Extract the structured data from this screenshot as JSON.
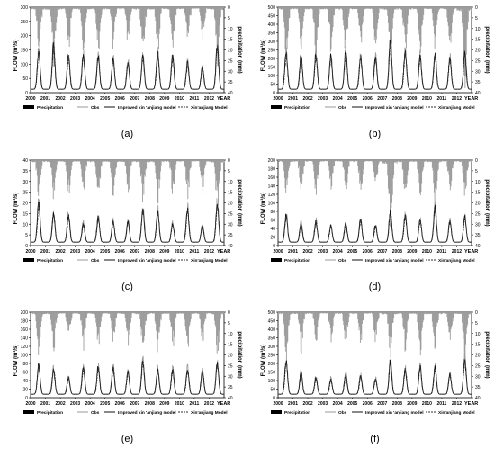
{
  "figure": {
    "legend_labels": {
      "precipitation": "Precipitation",
      "obs": "Obs",
      "improved": "Improved xin 'anjiang model",
      "xaj": "Xin'anjiang Model"
    },
    "colors": {
      "obs": "#9a9a9a",
      "improved": "#111111",
      "xaj": "#333333",
      "precip": "#9c9c9c"
    }
  },
  "chart_data": [
    {
      "type": "line",
      "panel_label": "(a)",
      "ylabel": "FLOW (m³/s)",
      "y2label": "precipitation (mm)",
      "xlabel": "YEAR",
      "ylim": [
        0,
        300
      ],
      "yticks": [
        0,
        50,
        100,
        150,
        200,
        250,
        300
      ],
      "y2lim": [
        0,
        40
      ],
      "y2ticks": [
        0,
        5,
        10,
        15,
        20,
        25,
        30,
        35,
        40
      ],
      "x": [
        "2000",
        "2001",
        "2002",
        "2003",
        "2004",
        "2005",
        "2006",
        "2007",
        "2008",
        "2009",
        "2010",
        "2011",
        "2012"
      ],
      "peak_flow": [
        140,
        160,
        120,
        125,
        120,
        110,
        95,
        120,
        130,
        120,
        95,
        80,
        160
      ],
      "peak_precip": [
        22,
        26,
        20,
        22,
        21,
        20,
        18,
        24,
        22,
        20,
        18,
        17,
        26
      ]
    },
    {
      "type": "line",
      "panel_label": "(b)",
      "ylabel": "FLOW (m³/s)",
      "y2label": "precipitation (mm)",
      "xlabel": "YEAR",
      "ylim": [
        0,
        500
      ],
      "yticks": [
        0,
        50,
        100,
        150,
        200,
        250,
        300,
        350,
        400,
        450,
        500
      ],
      "y2lim": [
        0,
        40
      ],
      "y2ticks": [
        0,
        5,
        10,
        15,
        20,
        25,
        30,
        35,
        40
      ],
      "x": [
        "2000",
        "2001",
        "2002",
        "2003",
        "2004",
        "2005",
        "2006",
        "2007",
        "2008",
        "2009",
        "2010",
        "2011",
        "2012"
      ],
      "peak_flow": [
        220,
        200,
        210,
        200,
        230,
        200,
        190,
        300,
        230,
        200,
        210,
        190,
        220
      ],
      "peak_precip": [
        24,
        20,
        22,
        20,
        23,
        21,
        19,
        25,
        22,
        20,
        21,
        19,
        35
      ]
    },
    {
      "type": "line",
      "panel_label": "(c)",
      "ylabel": "FLOW (m³/s)",
      "y2label": "precipitation (mm)",
      "xlabel": "YEAR",
      "ylim": [
        0,
        40
      ],
      "yticks": [
        0,
        5,
        10,
        15,
        20,
        25,
        30,
        35,
        40
      ],
      "y2lim": [
        0,
        40
      ],
      "y2ticks": [
        0,
        5,
        10,
        15,
        20,
        25,
        30,
        35,
        40
      ],
      "x": [
        "2000",
        "2001",
        "2002",
        "2003",
        "2004",
        "2005",
        "2006",
        "2007",
        "2008",
        "2009",
        "2010",
        "2011",
        "2012"
      ],
      "peak_flow": [
        19,
        14,
        13,
        9,
        12,
        10,
        10,
        16,
        15,
        9,
        16,
        8,
        19
      ],
      "peak_precip": [
        20,
        18,
        17,
        15,
        19,
        17,
        16,
        21,
        20,
        16,
        18,
        15,
        24
      ]
    },
    {
      "type": "line",
      "panel_label": "(d)",
      "ylabel": "FLOW (m³/s)",
      "y2label": "precipitation (mm)",
      "xlabel": "YEAR",
      "ylim": [
        0,
        200
      ],
      "yticks": [
        0,
        20,
        40,
        60,
        80,
        100,
        120,
        140,
        160,
        180,
        200
      ],
      "y2lim": [
        0,
        40
      ],
      "y2ticks": [
        0,
        5,
        10,
        15,
        20,
        25,
        30,
        35,
        40
      ],
      "x": [
        "2000",
        "2001",
        "2002",
        "2003",
        "2004",
        "2005",
        "2006",
        "2007",
        "2008",
        "2009",
        "2010",
        "2011",
        "2012"
      ],
      "peak_flow": [
        65,
        45,
        50,
        40,
        45,
        55,
        40,
        75,
        65,
        55,
        85,
        50,
        60
      ],
      "peak_precip": [
        18,
        15,
        16,
        14,
        15,
        16,
        13,
        35,
        19,
        17,
        22,
        15,
        18
      ]
    },
    {
      "type": "line",
      "panel_label": "(e)",
      "ylabel": "FLOW (m³/s)",
      "y2label": "precipitation (mm)",
      "xlabel": "YEAR",
      "ylim": [
        0,
        200
      ],
      "yticks": [
        0,
        20,
        40,
        60,
        80,
        100,
        120,
        140,
        160,
        180,
        200
      ],
      "y2lim": [
        0,
        40
      ],
      "y2ticks": [
        0,
        5,
        10,
        15,
        20,
        25,
        30,
        35,
        40
      ],
      "x": [
        "2000",
        "2001",
        "2002",
        "2003",
        "2004",
        "2005",
        "2006",
        "2007",
        "2008",
        "2009",
        "2010",
        "2011",
        "2012"
      ],
      "peak_flow": [
        70,
        60,
        40,
        65,
        65,
        65,
        55,
        80,
        60,
        60,
        60,
        55,
        75
      ],
      "peak_precip": [
        20,
        18,
        14,
        17,
        18,
        17,
        16,
        20,
        18,
        17,
        17,
        16,
        20
      ]
    },
    {
      "type": "line",
      "panel_label": "(f)",
      "ylabel": "FLOW (m³/s)",
      "y2label": "precipitation (mm)",
      "xlabel": "YEAR",
      "ylim": [
        0,
        500
      ],
      "yticks": [
        0,
        50,
        100,
        150,
        200,
        250,
        300,
        350,
        400,
        450,
        500
      ],
      "y2lim": [
        0,
        40
      ],
      "y2ticks": [
        0,
        5,
        10,
        15,
        20,
        25,
        30,
        35,
        40
      ],
      "x": [
        "2000",
        "2001",
        "2002",
        "2003",
        "2004",
        "2005",
        "2006",
        "2007",
        "2008",
        "2009",
        "2010",
        "2011",
        "2012"
      ],
      "peak_flow": [
        200,
        130,
        100,
        90,
        120,
        110,
        90,
        200,
        150,
        170,
        160,
        120,
        210
      ],
      "peak_precip": [
        21,
        18,
        15,
        14,
        17,
        16,
        14,
        22,
        19,
        20,
        19,
        16,
        23
      ]
    }
  ]
}
